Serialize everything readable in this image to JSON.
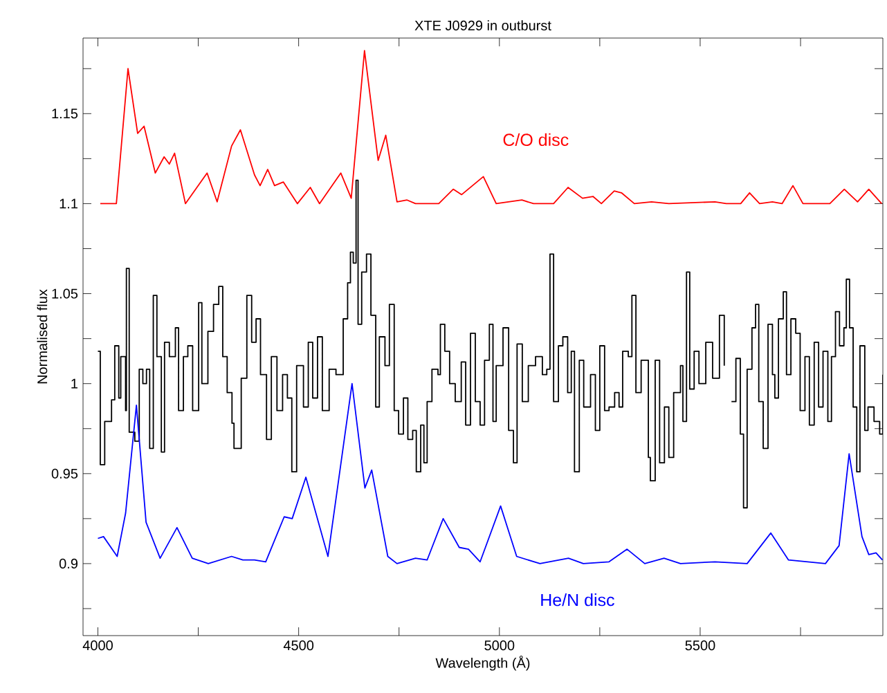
{
  "chart_data": {
    "type": "line",
    "title": "XTE J0929 in outburst",
    "xlabel": "Wavelength (Å)",
    "ylabel": "Normalised flux",
    "xlim": [
      3963,
      5955
    ],
    "ylim": [
      0.86,
      1.192
    ],
    "xticks": [
      4000,
      {
        "value": 4250,
        "label": null
      },
      4500,
      {
        "value": 4750,
        "label": null
      },
      5000,
      {
        "value": 5250,
        "label": null
      },
      5500,
      {
        "value": 5750,
        "label": null
      }
    ],
    "yticks": [
      {
        "value": 0.875,
        "label": null
      },
      0.9,
      {
        "value": 0.925,
        "label": null
      },
      0.95,
      {
        "value": 0.975,
        "label": null
      },
      1,
      {
        "value": 1.025,
        "label": null
      },
      1.05,
      {
        "value": 1.075,
        "label": null
      },
      1.1,
      {
        "value": 1.125,
        "label": null
      },
      1.15,
      {
        "value": 1.175,
        "label": null
      }
    ],
    "marker": "none",
    "line_style": "solid",
    "series": [
      {
        "type": "step",
        "color": "#000000",
        "x": [
          4000,
          4006,
          4017,
          4034,
          4042,
          4052,
          4057,
          4069,
          4071,
          4078,
          4092,
          4103,
          4112,
          4121,
          4129,
          4138,
          4147,
          4158,
          4166,
          4178,
          4193,
          4201,
          4213,
          4224,
          4236,
          4251,
          4259,
          4274,
          4288,
          4301,
          4311,
          4322,
          4334,
          4339,
          4357,
          4371,
          4383,
          4394,
          4405,
          4420,
          4432,
          4446,
          4460,
          4472,
          4483,
          4495,
          4512,
          4524,
          4535,
          4547,
          4559,
          4576,
          4593,
          4611,
          4622,
          4629,
          4636,
          4643,
          4648,
          4657,
          4669,
          4680,
          4692,
          4701,
          4715,
          4726,
          4738,
          4749,
          4761,
          4772,
          4784,
          4793,
          4804,
          4812,
          4820,
          4832,
          4847,
          4853,
          4864,
          4876,
          4890,
          4905,
          4916,
          4928,
          4940,
          4952,
          4963,
          4975,
          4984,
          4992,
          5009,
          5023,
          5035,
          5044,
          5057,
          5072,
          5090,
          5107,
          5118,
          5126,
          5135,
          5147,
          5158,
          5170,
          5179,
          5187,
          5199,
          5210,
          5227,
          5239,
          5250,
          5262,
          5273,
          5287,
          5298,
          5307,
          5321,
          5330,
          5340,
          5353,
          5371,
          5376,
          5388,
          5399,
          5411,
          5422,
          5434,
          5451,
          5457,
          5466,
          5474,
          5485,
          5497,
          5514,
          5531,
          5548,
          5560,
          5566,
          5570,
          5574,
          5578,
          5589,
          5600,
          5608,
          5617,
          5629,
          5638,
          5646,
          5657,
          5669,
          5680,
          5686,
          5695,
          5707,
          5715,
          5726,
          5738,
          5749,
          5761,
          5772,
          5784,
          5795,
          5806,
          5818,
          5827,
          5837,
          5847,
          5858,
          5864,
          5872,
          5881,
          5890,
          5898,
          5910,
          5918,
          5933,
          5947,
          5955
        ],
        "values": [
          1.018,
          0.955,
          0.979,
          0.991,
          1.021,
          0.992,
          1.015,
          0.985,
          1.064,
          0.973,
          0.968,
          1.008,
          1.0,
          1.008,
          0.964,
          1.049,
          1.015,
          0.962,
          1.023,
          1.015,
          1.031,
          0.985,
          1.015,
          1.021,
          0.985,
          1.045,
          1.0,
          1.029,
          1.044,
          1.054,
          1.015,
          0.995,
          0.978,
          0.964,
          1.003,
          1.049,
          1.023,
          1.036,
          1.005,
          0.969,
          1.015,
          0.985,
          1.005,
          0.992,
          0.951,
          1.01,
          0.987,
          1.023,
          0.992,
          1.026,
          0.985,
          1.008,
          1.005,
          1.036,
          1.056,
          1.073,
          1.067,
          1.113,
          1.033,
          1.062,
          1.072,
          1.038,
          0.987,
          1.026,
          1.01,
          1.044,
          0.985,
          0.972,
          0.992,
          0.969,
          0.974,
          0.951,
          0.977,
          0.956,
          0.99,
          1.008,
          1.005,
          1.033,
          1.018,
          1.0,
          0.99,
          1.012,
          0.977,
          1.028,
          0.99,
          0.977,
          1.013,
          1.033,
          0.979,
          1.01,
          1.031,
          0.974,
          0.956,
          1.022,
          0.99,
          1.01,
          1.015,
          1.005,
          1.008,
          1.072,
          0.99,
          1.021,
          1.026,
          0.995,
          1.018,
          0.951,
          1.013,
          0.987,
          1.005,
          0.974,
          1.021,
          0.985,
          0.987,
          0.995,
          0.987,
          1.018,
          1.015,
          1.049,
          0.995,
          1.013,
          0.959,
          0.946,
          1.013,
          0.956,
          0.987,
          0.959,
          0.995,
          1.01,
          0.979,
          1.062,
          0.997,
          1.018,
          1.0,
          1.023,
          1.003,
          1.038,
          1.01,
          null,
          null,
          null,
          0.99,
          1.014,
          0.972,
          0.931,
          1.008,
          1.031,
          1.044,
          0.99,
          0.964,
          1.033,
          1.005,
          0.992,
          1.036,
          1.051,
          1.005,
          1.036,
          1.028,
          0.985,
          1.015,
          0.977,
          1.023,
          0.987,
          1.018,
          0.979,
          1.015,
          1.04,
          1.021,
          1.031,
          1.058,
          1.031,
          0.987,
          0.951,
          1.021,
          0.974,
          0.987,
          0.979,
          0.972,
          1.005
        ]
      },
      {
        "name": "C/O disc",
        "color": "#ff0000",
        "x": [
          4006,
          4046,
          4075,
          4099,
          4115,
          4143,
          4165,
          4178,
          4191,
          4218,
          4272,
          4297,
          4333,
          4355,
          4390,
          4404,
          4423,
          4440,
          4462,
          4497,
          4529,
          4552,
          4605,
          4631,
          4664,
          4698,
          4717,
          4745,
          4770,
          4791,
          4849,
          4885,
          4906,
          4960,
          4992,
          5056,
          5085,
          5135,
          5171,
          5207,
          5233,
          5254,
          5286,
          5304,
          5336,
          5379,
          5422,
          5537,
          5565,
          5601,
          5623,
          5648,
          5680,
          5704,
          5731,
          5756,
          5823,
          5859,
          5892,
          5920,
          5952
        ],
        "values": [
          1.1,
          1.1,
          1.175,
          1.139,
          1.143,
          1.117,
          1.126,
          1.122,
          1.128,
          1.1,
          1.117,
          1.101,
          1.132,
          1.141,
          1.116,
          1.11,
          1.119,
          1.11,
          1.112,
          1.1,
          1.109,
          1.1,
          1.117,
          1.103,
          1.185,
          1.124,
          1.138,
          1.101,
          1.102,
          1.1,
          1.1,
          1.108,
          1.105,
          1.115,
          1.1,
          1.102,
          1.1,
          1.1,
          1.109,
          1.103,
          1.104,
          1.1,
          1.107,
          1.106,
          1.1,
          1.101,
          1.1,
          1.101,
          1.1,
          1.1,
          1.106,
          1.1,
          1.101,
          1.1,
          1.11,
          1.1,
          1.1,
          1.108,
          1.101,
          1.108,
          1.1
        ]
      },
      {
        "name": "He/N disc",
        "color": "#0000ff",
        "x": [
          4000,
          4014,
          4048,
          4069,
          4096,
          4120,
          4155,
          4197,
          4235,
          4275,
          4333,
          4361,
          4390,
          4418,
          4464,
          4484,
          4518,
          4573,
          4633,
          4665,
          4682,
          4722,
          4745,
          4791,
          4820,
          4860,
          4900,
          4923,
          4952,
          5003,
          5043,
          5101,
          5172,
          5209,
          5273,
          5318,
          5362,
          5410,
          5451,
          5537,
          5617,
          5676,
          5720,
          5812,
          5846,
          5871,
          5903,
          5920,
          5938,
          5954
        ],
        "values": [
          0.914,
          0.915,
          0.904,
          0.928,
          0.988,
          0.923,
          0.903,
          0.92,
          0.903,
          0.9,
          0.904,
          0.902,
          0.902,
          0.901,
          0.926,
          0.925,
          0.948,
          0.904,
          1.0,
          0.942,
          0.952,
          0.904,
          0.9,
          0.903,
          0.902,
          0.925,
          0.909,
          0.908,
          0.901,
          0.932,
          0.904,
          0.9,
          0.903,
          0.9,
          0.901,
          0.908,
          0.9,
          0.903,
          0.9,
          0.901,
          0.9,
          0.917,
          0.902,
          0.9,
          0.91,
          0.961,
          0.915,
          0.905,
          0.906,
          0.902
        ]
      }
    ]
  }
}
